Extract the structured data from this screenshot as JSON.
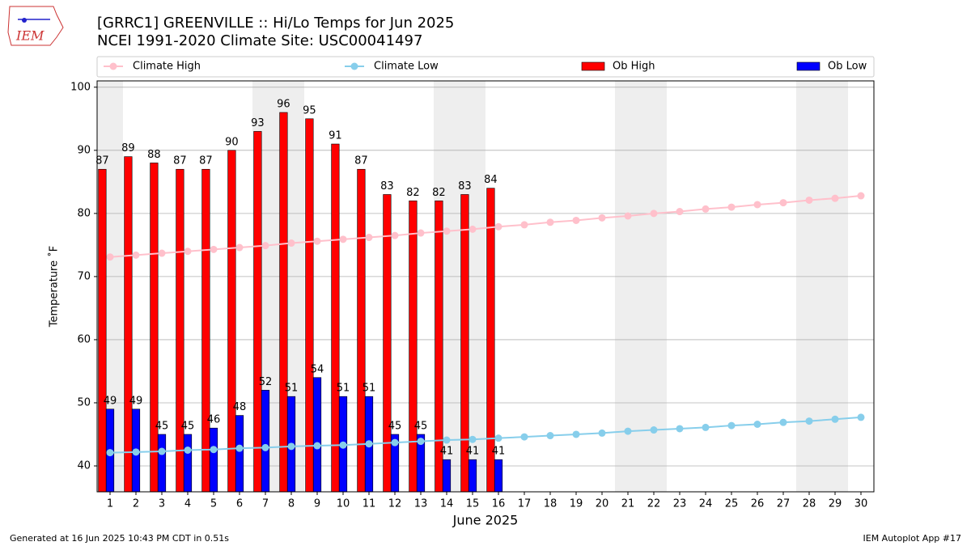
{
  "chart_data": {
    "type": "bar",
    "logo_text": "IEM",
    "title": "[GRRC1] GREENVILLE :: Hi/Lo Temps for Jun 2025",
    "subtitle": "NCEI 1991-2020 Climate Site: USC00041497",
    "y_label": "Temperature ˚F",
    "x_label": "June 2025",
    "footer_left": "Generated at 16 Jun 2025 10:43 PM CDT in 0.51s",
    "footer_right": "IEM Autoplot App #17",
    "x": [
      1,
      2,
      3,
      4,
      5,
      6,
      7,
      8,
      9,
      10,
      11,
      12,
      13,
      14,
      15,
      16,
      17,
      18,
      19,
      20,
      21,
      22,
      23,
      24,
      25,
      26,
      27,
      28,
      29,
      30
    ],
    "xlim": [
      0.5,
      30.5
    ],
    "xticks": [
      1,
      2,
      3,
      4,
      5,
      6,
      7,
      8,
      9,
      10,
      11,
      12,
      13,
      14,
      15,
      16,
      17,
      18,
      19,
      20,
      21,
      22,
      23,
      24,
      25,
      26,
      27,
      28,
      29,
      30
    ],
    "ylim": [
      35.9,
      101
    ],
    "yticks": [
      40,
      50,
      60,
      70,
      80,
      90,
      100
    ],
    "grid": true,
    "shaded_days": [
      1,
      7,
      8,
      14,
      15,
      21,
      22,
      28,
      29
    ],
    "legend_position": "top",
    "series": [
      {
        "name": "Climate High",
        "type": "line",
        "color": "#ffc0cb",
        "values": [
          73.1,
          73.4,
          73.7,
          74.0,
          74.3,
          74.6,
          74.9,
          75.3,
          75.6,
          75.9,
          76.2,
          76.5,
          76.9,
          77.2,
          77.5,
          77.9,
          78.2,
          78.6,
          78.9,
          79.3,
          79.6,
          80.0,
          80.3,
          80.7,
          81.0,
          81.4,
          81.7,
          82.1,
          82.4,
          82.8
        ]
      },
      {
        "name": "Climate Low",
        "type": "line",
        "color": "#87ceeb",
        "values": [
          42.1,
          42.2,
          42.3,
          42.5,
          42.6,
          42.8,
          42.9,
          43.1,
          43.2,
          43.3,
          43.5,
          43.7,
          43.9,
          44.1,
          44.2,
          44.4,
          44.6,
          44.8,
          45.0,
          45.2,
          45.5,
          45.7,
          45.9,
          46.1,
          46.4,
          46.6,
          46.9,
          47.1,
          47.4,
          47.7
        ]
      },
      {
        "name": "Ob High",
        "type": "bar",
        "color": "#ff0000",
        "values": [
          87,
          89,
          88,
          87,
          87,
          90,
          93,
          96,
          95,
          91,
          87,
          83,
          82,
          82,
          83,
          84,
          null,
          null,
          null,
          null,
          null,
          null,
          null,
          null,
          null,
          null,
          null,
          null,
          null,
          null
        ]
      },
      {
        "name": "Ob Low",
        "type": "bar",
        "color": "#0000ff",
        "values": [
          49,
          49,
          45,
          45,
          46,
          48,
          52,
          51,
          54,
          51,
          51,
          45,
          45,
          41,
          41,
          41,
          null,
          null,
          null,
          null,
          null,
          null,
          null,
          null,
          null,
          null,
          null,
          null,
          null,
          null
        ]
      }
    ]
  }
}
